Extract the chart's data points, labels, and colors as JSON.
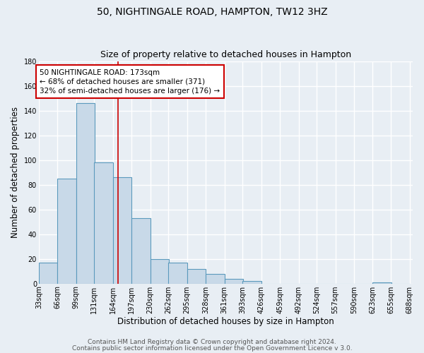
{
  "title": "50, NIGHTINGALE ROAD, HAMPTON, TW12 3HZ",
  "subtitle": "Size of property relative to detached houses in Hampton",
  "xlabel": "Distribution of detached houses by size in Hampton",
  "ylabel": "Number of detached properties",
  "bar_left_edges": [
    33,
    66,
    99,
    131,
    164,
    197,
    230,
    262,
    295,
    328,
    361,
    393,
    426,
    459,
    492,
    524,
    557,
    590,
    623,
    655
  ],
  "bar_heights": [
    17,
    85,
    146,
    98,
    86,
    53,
    20,
    17,
    12,
    8,
    4,
    2,
    0,
    0,
    0,
    0,
    0,
    0,
    1,
    0
  ],
  "bin_width": 33,
  "tick_labels": [
    "33sqm",
    "66sqm",
    "99sqm",
    "131sqm",
    "164sqm",
    "197sqm",
    "230sqm",
    "262sqm",
    "295sqm",
    "328sqm",
    "361sqm",
    "393sqm",
    "426sqm",
    "459sqm",
    "492sqm",
    "524sqm",
    "557sqm",
    "590sqm",
    "623sqm",
    "655sqm",
    "688sqm"
  ],
  "bar_color": "#c8d9e8",
  "bar_edge_color": "#5b9abd",
  "vline_x": 173,
  "vline_color": "#cc0000",
  "ylim": [
    0,
    180
  ],
  "yticks": [
    0,
    20,
    40,
    60,
    80,
    100,
    120,
    140,
    160,
    180
  ],
  "annotation_line1": "50 NIGHTINGALE ROAD: 173sqm",
  "annotation_line2": "← 68% of detached houses are smaller (371)",
  "annotation_line3": "32% of semi-detached houses are larger (176) →",
  "annotation_box_color": "#cc0000",
  "annotation_box_facecolor": "white",
  "footer_line1": "Contains HM Land Registry data © Crown copyright and database right 2024.",
  "footer_line2": "Contains public sector information licensed under the Open Government Licence v 3.0.",
  "background_color": "#e8eef4",
  "grid_color": "#ffffff",
  "title_fontsize": 10,
  "subtitle_fontsize": 9,
  "axis_label_fontsize": 8.5,
  "tick_fontsize": 7,
  "annotation_fontsize": 7.5,
  "footer_fontsize": 6.5
}
